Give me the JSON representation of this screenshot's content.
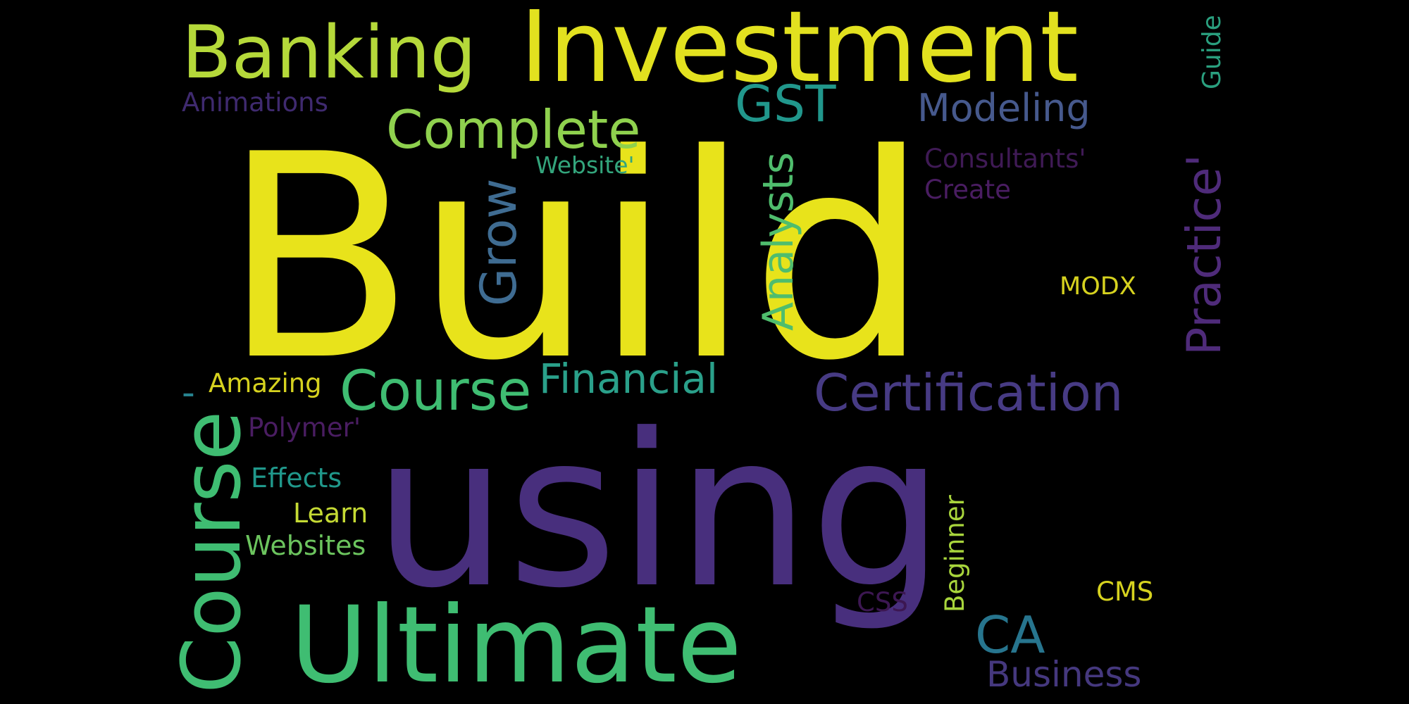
{
  "words": [
    {
      "text": "Build",
      "color": "#e8e31b"
    },
    {
      "text": "using",
      "color": "#482f7d"
    },
    {
      "text": "Investment",
      "color": "#e2e11f"
    },
    {
      "text": "Banking",
      "color": "#b5d93a"
    },
    {
      "text": "Ultimate",
      "color": "#3fbd72"
    },
    {
      "text": "Complete",
      "color": "#8fd14e"
    },
    {
      "text": "GST",
      "color": "#21978c"
    },
    {
      "text": "Modeling",
      "color": "#46598d"
    },
    {
      "text": "Guide",
      "color": "#2aa07f"
    },
    {
      "text": "Animations",
      "color": "#3f2a6f"
    },
    {
      "text": "Website'",
      "color": "#33a57c"
    },
    {
      "text": "Consultants'",
      "color": "#3f1a55"
    },
    {
      "text": "Create",
      "color": "#4a1d62"
    },
    {
      "text": "Practice'",
      "color": "#4f2b7a"
    },
    {
      "text": "Analysts",
      "color": "#4fbd6d"
    },
    {
      "text": "Grow",
      "color": "#3f6c92"
    },
    {
      "text": "MODX",
      "color": "#d6d21f"
    },
    {
      "text": "-",
      "color": "#26828e"
    },
    {
      "text": "Amazing",
      "color": "#d6d21f"
    },
    {
      "text": "Course",
      "color": "#3fbd72"
    },
    {
      "text": "Financial",
      "color": "#2aa08a"
    },
    {
      "text": "Certification",
      "color": "#473b84"
    },
    {
      "text": "Polymer'",
      "color": "#4a1d62"
    },
    {
      "text": "Course",
      "color": "#3fbd72"
    },
    {
      "text": "Effects",
      "color": "#20988b"
    },
    {
      "text": "Learn",
      "color": "#c5da34"
    },
    {
      "text": "Websites",
      "color": "#6cc45e"
    },
    {
      "text": "CA",
      "color": "#27758e"
    },
    {
      "text": "Business",
      "color": "#45387e"
    },
    {
      "text": "Beginner",
      "color": "#a8d53c"
    },
    {
      "text": "CSS",
      "color": "#3c1752"
    },
    {
      "text": "CMS",
      "color": "#d6d21f"
    }
  ]
}
